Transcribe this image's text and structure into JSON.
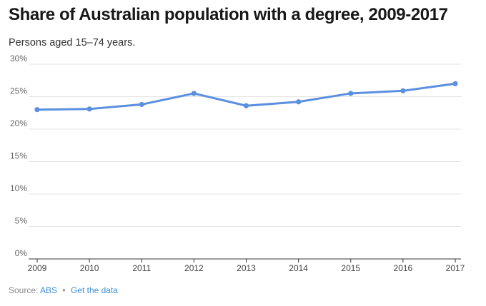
{
  "chart_data": {
    "type": "line",
    "title": "Share of Australian population with a degree, 2009-2017",
    "subtitle": "Persons aged 15–74 years.",
    "xlabel": "",
    "ylabel": "",
    "categories": [
      "2009",
      "2010",
      "2011",
      "2012",
      "2013",
      "2014",
      "2015",
      "2016",
      "2017"
    ],
    "series": [
      {
        "values": [
          23.0,
          23.1,
          23.8,
          25.5,
          23.6,
          24.2,
          25.5,
          25.9,
          27.0
        ]
      }
    ],
    "ylim": [
      0,
      30
    ],
    "yticks": [
      0,
      5,
      10,
      15,
      20,
      25,
      30
    ],
    "ytick_labels": [
      "0%",
      "5%",
      "10%",
      "15%",
      "20%",
      "25%",
      "30%"
    ],
    "grid": true,
    "colors": {
      "line": "#5b8fe0",
      "grid": "#e3e3e3",
      "axis": "#333333"
    }
  },
  "footer": {
    "source_prefix": "Source:",
    "source_link": "ABS",
    "separator": "•",
    "data_link": "Get the data"
  }
}
